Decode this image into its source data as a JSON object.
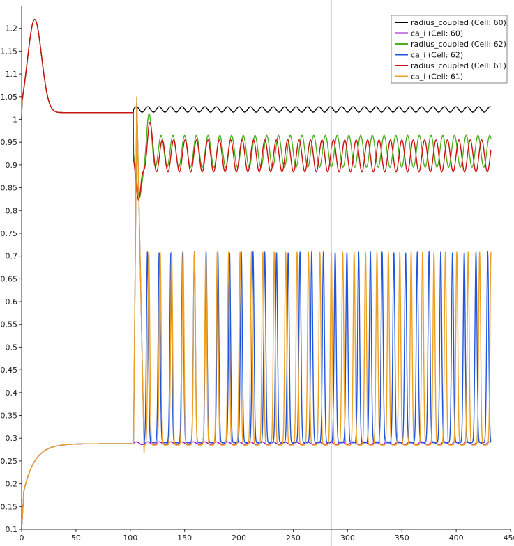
{
  "chart_data": {
    "type": "line",
    "title": "",
    "xlabel": "",
    "ylabel": "",
    "xlim": [
      0,
      450
    ],
    "ylim": [
      0.1,
      1.25
    ],
    "x_ticks": [
      0,
      50,
      100,
      150,
      200,
      250,
      300,
      350,
      400,
      450
    ],
    "y_ticks": [
      0.1,
      0.15,
      0.2,
      0.25,
      0.3,
      0.35,
      0.4,
      0.45,
      0.5,
      0.55,
      0.6,
      0.65,
      0.7,
      0.75,
      0.8,
      0.85,
      0.9,
      0.95,
      1,
      1.05,
      1.1,
      1.15,
      1.2
    ],
    "grid": false,
    "legend_position": "top-right",
    "vertical_marker": {
      "x": 285,
      "color": "#9fd36a"
    },
    "series": [
      {
        "name": "radius_coupled (Cell: 60)",
        "color": "#000000",
        "model": {
          "kind": "radius",
          "steady": 1.015,
          "onset": 103,
          "mean": 1.022,
          "amp": 0.006,
          "period": 10.5,
          "phase": 0
        }
      },
      {
        "name": "ca_i (Cell: 60)",
        "color": "#9a00d6",
        "model": {
          "kind": "ca",
          "steady": 0.288,
          "onset": 103,
          "mean": 0.289,
          "amp": 0.003,
          "period": 10.5,
          "phase": 0
        }
      },
      {
        "name": "radius_coupled (Cell: 62)",
        "color": "#4caf1f",
        "model": {
          "kind": "radius_osc",
          "steady": 1.015,
          "onset": 103,
          "mean": 0.93,
          "amp": 0.035,
          "period": 10.8,
          "phase": 1.2
        }
      },
      {
        "name": "ca_i (Cell: 62)",
        "color": "#2255dd",
        "model": {
          "kind": "ca_osc",
          "steady": 0.288,
          "onset": 103,
          "base": 0.29,
          "peak": 0.71,
          "period": 10.8,
          "phase": 1.2
        }
      },
      {
        "name": "radius_coupled (Cell: 61)",
        "color": "#d01010",
        "model": {
          "kind": "radius_osc",
          "steady": 1.015,
          "onset": 103,
          "mean": 0.92,
          "amp": 0.035,
          "period": 10.5,
          "phase": 0.4
        }
      },
      {
        "name": "ca_i (Cell: 61)",
        "color": "#f0a020",
        "model": {
          "kind": "ca_osc",
          "steady": 0.288,
          "onset": 103,
          "base": 0.285,
          "peak": 0.71,
          "period": 10.5,
          "phase": 0.4
        }
      }
    ]
  }
}
